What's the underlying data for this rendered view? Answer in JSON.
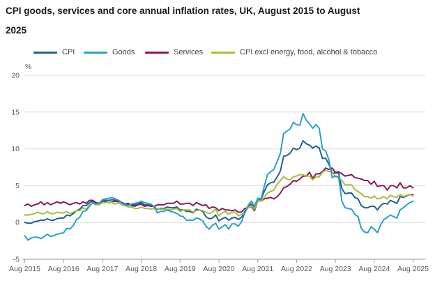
{
  "title": "CPI goods, services and core annual inflation rates, UK, August 2015 to August 2025",
  "legend": [
    {
      "label": "CPI",
      "color": "#206095"
    },
    {
      "label": "Goods",
      "color": "#27A0CC"
    },
    {
      "label": "Services",
      "color": "#871A5B"
    },
    {
      "label": "CPI excl energy, food, alcohol & tobacco",
      "color": "#A8BD3A"
    }
  ],
  "chart_data": {
    "type": "line",
    "title": "CPI goods, services and core annual inflation rates, UK, August 2015 to August 2025",
    "ylabel": "%",
    "frequency": "monthly",
    "x_start": "Aug 2015",
    "x_end": "Aug 2025",
    "months_span": 120,
    "x_tick_labels": [
      "Aug 2015",
      "Aug 2016",
      "Aug 2017",
      "Aug 2018",
      "Aug 2019",
      "Aug 2020",
      "Aug 2021",
      "Aug 2022",
      "Aug 2023",
      "Aug 2024",
      "Aug 2025"
    ],
    "y_ticks": [
      20,
      15,
      10,
      5,
      0,
      -5
    ],
    "ylim": [
      -5,
      20
    ],
    "gridlines": true,
    "legend_position": "top",
    "series": [
      {
        "name": "CPI",
        "color": "#206095",
        "values": [
          0.0,
          -0.1,
          -0.1,
          0.1,
          0.2,
          0.3,
          0.3,
          0.5,
          0.3,
          0.3,
          0.5,
          0.6,
          0.6,
          1.0,
          0.9,
          1.2,
          1.6,
          1.8,
          2.3,
          2.3,
          2.7,
          2.9,
          2.6,
          2.6,
          2.9,
          3.0,
          3.0,
          3.1,
          3.0,
          3.0,
          2.7,
          2.5,
          2.4,
          2.4,
          2.4,
          2.5,
          2.7,
          2.4,
          2.4,
          2.3,
          2.1,
          1.8,
          1.9,
          1.9,
          2.1,
          2.0,
          2.0,
          2.1,
          1.7,
          1.7,
          1.5,
          1.5,
          1.3,
          1.8,
          1.7,
          1.5,
          0.8,
          0.5,
          0.6,
          1.0,
          0.2,
          0.5,
          0.7,
          0.3,
          0.6,
          0.7,
          0.4,
          0.7,
          1.5,
          2.1,
          2.5,
          2.0,
          3.2,
          3.1,
          4.2,
          5.1,
          5.4,
          5.5,
          6.2,
          7.0,
          9.0,
          9.1,
          9.4,
          10.1,
          9.9,
          10.1,
          11.1,
          10.7,
          10.5,
          10.1,
          10.4,
          10.1,
          8.7,
          8.7,
          7.9,
          6.8,
          6.7,
          6.7,
          4.6,
          3.9,
          4.0,
          4.0,
          3.4,
          3.2,
          2.3,
          2.0,
          2.0,
          2.2,
          2.2,
          1.7,
          2.3,
          2.6,
          2.5,
          3.0,
          2.8,
          2.6,
          3.5,
          3.4,
          3.6,
          3.8,
          3.8
        ]
      },
      {
        "name": "Goods",
        "color": "#27A0CC",
        "values": [
          -1.8,
          -2.4,
          -2.1,
          -2.0,
          -2.0,
          -2.2,
          -1.9,
          -1.6,
          -1.9,
          -1.8,
          -1.6,
          -1.5,
          -1.4,
          -0.8,
          -0.9,
          -0.4,
          0.4,
          0.7,
          1.5,
          1.6,
          2.2,
          2.7,
          2.5,
          2.6,
          3.1,
          3.2,
          3.3,
          3.4,
          3.2,
          3.0,
          2.6,
          2.4,
          2.3,
          2.5,
          2.6,
          2.7,
          2.9,
          2.7,
          2.6,
          2.5,
          2.1,
          1.3,
          1.5,
          1.5,
          1.7,
          1.5,
          1.4,
          1.2,
          0.9,
          0.8,
          0.3,
          0.3,
          0.3,
          0.6,
          0.5,
          0.2,
          -0.5,
          -0.9,
          -0.4,
          -0.1,
          -0.9,
          -0.6,
          -0.3,
          -0.9,
          -0.2,
          -0.2,
          -0.5,
          0.1,
          1.3,
          2.3,
          2.9,
          2.2,
          3.3,
          3.2,
          4.9,
          6.5,
          6.9,
          7.2,
          8.3,
          9.4,
          12.1,
          12.4,
          12.7,
          13.6,
          13.3,
          13.2,
          14.8,
          13.9,
          13.4,
          12.8,
          13.3,
          12.8,
          10.0,
          9.7,
          8.5,
          6.1,
          6.3,
          6.2,
          2.9,
          2.0,
          1.9,
          1.8,
          1.1,
          0.8,
          -0.8,
          -1.3,
          -1.4,
          -0.6,
          -0.9,
          -1.4,
          -0.3,
          0.4,
          0.7,
          1.0,
          0.8,
          0.6,
          1.7,
          2.0,
          2.4,
          2.7,
          2.9
        ]
      },
      {
        "name": "Services",
        "color": "#871A5B",
        "values": [
          2.3,
          2.5,
          2.2,
          2.4,
          2.5,
          2.8,
          2.4,
          2.7,
          2.4,
          2.6,
          2.8,
          2.6,
          2.8,
          2.6,
          2.4,
          2.6,
          2.7,
          2.5,
          2.8,
          2.6,
          3.0,
          3.0,
          2.7,
          2.6,
          2.7,
          2.8,
          2.7,
          2.8,
          2.9,
          2.8,
          2.7,
          2.5,
          2.6,
          2.3,
          2.2,
          2.4,
          2.5,
          2.2,
          2.3,
          2.2,
          2.2,
          2.4,
          2.4,
          2.4,
          2.6,
          2.6,
          2.6,
          2.9,
          2.5,
          2.5,
          2.6,
          2.6,
          2.3,
          2.7,
          2.5,
          2.3,
          2.4,
          1.9,
          2.1,
          2.0,
          1.6,
          1.9,
          1.7,
          1.7,
          1.6,
          1.7,
          1.4,
          1.4,
          1.9,
          2.0,
          2.2,
          1.6,
          3.0,
          2.9,
          3.2,
          3.3,
          3.4,
          3.2,
          3.5,
          4.0,
          4.7,
          4.9,
          5.2,
          5.7,
          5.6,
          5.9,
          6.3,
          6.3,
          6.8,
          6.0,
          6.6,
          6.6,
          6.9,
          7.4,
          7.2,
          7.4,
          6.8,
          6.9,
          6.6,
          6.3,
          6.4,
          6.5,
          6.1,
          6.0,
          5.9,
          5.7,
          5.7,
          5.2,
          5.6,
          4.9,
          5.0,
          5.0,
          4.4,
          5.0,
          5.0,
          4.7,
          5.4,
          4.7,
          4.7,
          5.0,
          4.7
        ]
      },
      {
        "name": "CPI excl energy, food, alcohol & tobacco",
        "color": "#A8BD3A",
        "values": [
          1.0,
          1.0,
          1.1,
          1.2,
          1.4,
          1.2,
          1.2,
          1.5,
          1.2,
          1.2,
          1.4,
          1.3,
          1.3,
          1.5,
          1.2,
          1.4,
          1.6,
          1.6,
          2.0,
          1.8,
          2.4,
          2.6,
          2.4,
          2.4,
          2.7,
          2.7,
          2.7,
          2.7,
          2.5,
          2.7,
          2.4,
          2.3,
          2.1,
          2.1,
          1.9,
          1.9,
          2.1,
          1.9,
          1.9,
          1.8,
          1.9,
          1.9,
          1.8,
          1.8,
          1.8,
          1.7,
          1.8,
          1.9,
          1.5,
          1.7,
          1.7,
          1.7,
          1.4,
          1.6,
          1.7,
          1.6,
          1.4,
          1.2,
          1.4,
          1.8,
          0.9,
          1.3,
          1.5,
          1.1,
          1.4,
          1.4,
          0.9,
          1.1,
          1.3,
          2.0,
          2.3,
          1.8,
          3.1,
          2.9,
          3.4,
          4.0,
          4.2,
          4.4,
          5.2,
          5.7,
          6.2,
          5.9,
          5.8,
          6.2,
          6.3,
          6.5,
          6.5,
          6.3,
          6.3,
          5.8,
          6.2,
          6.2,
          6.8,
          7.1,
          6.9,
          6.9,
          6.2,
          6.1,
          5.7,
          5.1,
          5.1,
          5.1,
          4.5,
          4.2,
          3.9,
          3.5,
          3.5,
          3.3,
          3.6,
          3.2,
          3.3,
          3.5,
          3.2,
          3.7,
          3.5,
          3.4,
          3.8,
          3.5,
          3.7,
          3.8,
          3.6
        ]
      }
    ]
  }
}
